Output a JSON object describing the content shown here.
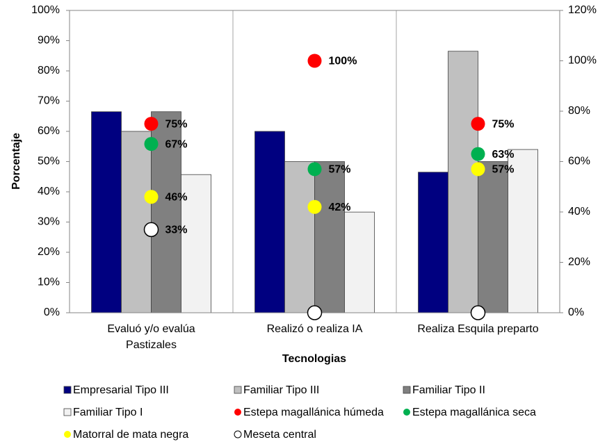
{
  "chart_data": {
    "type": "bar",
    "xlabel": "Tecnologias",
    "ylabel": "Porcentaje",
    "categories": [
      [
        "Evaluó y/o evalúa",
        "Pastizales"
      ],
      [
        "Realizó o realiza IA"
      ],
      [
        "Realiza Esquila preparto"
      ]
    ],
    "ylim": [
      0,
      100
    ],
    "yticks": [
      {
        "value": 0,
        "label": "0%"
      },
      {
        "value": 10,
        "label": "10%"
      },
      {
        "value": 20,
        "label": "20%"
      },
      {
        "value": 30,
        "label": "30%"
      },
      {
        "value": 40,
        "label": "40%"
      },
      {
        "value": 50,
        "label": "50%"
      },
      {
        "value": 60,
        "label": "60%"
      },
      {
        "value": 70,
        "label": "70%"
      },
      {
        "value": 80,
        "label": "80%"
      },
      {
        "value": 90,
        "label": "90%"
      },
      {
        "value": 100,
        "label": "100%"
      }
    ],
    "y2lim": [
      0,
      120
    ],
    "y2ticks": [
      {
        "value": 0,
        "label": "0%"
      },
      {
        "value": 20,
        "label": "20%"
      },
      {
        "value": 40,
        "label": "40%"
      },
      {
        "value": 60,
        "label": "60%"
      },
      {
        "value": 80,
        "label": "80%"
      },
      {
        "value": 100,
        "label": "100%"
      },
      {
        "value": 120,
        "label": "120%"
      }
    ],
    "series": [
      {
        "name": "Empresarial Tipo III",
        "type": "bar",
        "color": "#000080",
        "values": [
          66.5,
          60,
          46.5
        ]
      },
      {
        "name": "Familiar Tipo III",
        "type": "bar",
        "color": "#c0c0c0",
        "values": [
          60,
          50,
          86.5
        ]
      },
      {
        "name": "Familiar Tipo II",
        "type": "bar",
        "color": "#808080",
        "values": [
          66.5,
          50,
          50
        ]
      },
      {
        "name": "Familiar Tipo I",
        "type": "bar",
        "color": "#f2f2f2",
        "values": [
          45.7,
          33.3,
          54
        ]
      },
      {
        "name": "Estepa magallánica húmeda",
        "type": "scatter",
        "axis": "y2",
        "color": "#ff0000",
        "values": [
          75,
          100,
          75
        ],
        "value_labels": [
          "75%",
          "100%",
          "75%"
        ]
      },
      {
        "name": "Estepa magallánica seca",
        "type": "scatter",
        "axis": "y2",
        "color": "#00b050",
        "values": [
          67,
          57,
          63
        ],
        "value_labels": [
          "67%",
          "57%",
          "63%"
        ]
      },
      {
        "name": "Matorral de mata negra",
        "type": "scatter",
        "axis": "y2",
        "color": "#ffff00",
        "values": [
          46,
          42,
          57
        ],
        "value_labels": [
          "46%",
          "42%",
          "57%"
        ]
      },
      {
        "name": "Meseta central",
        "type": "scatter",
        "axis": "y2",
        "color": "#ffffff",
        "values": [
          33,
          0,
          0
        ],
        "value_labels": [
          "33%",
          null,
          null
        ]
      }
    ]
  }
}
